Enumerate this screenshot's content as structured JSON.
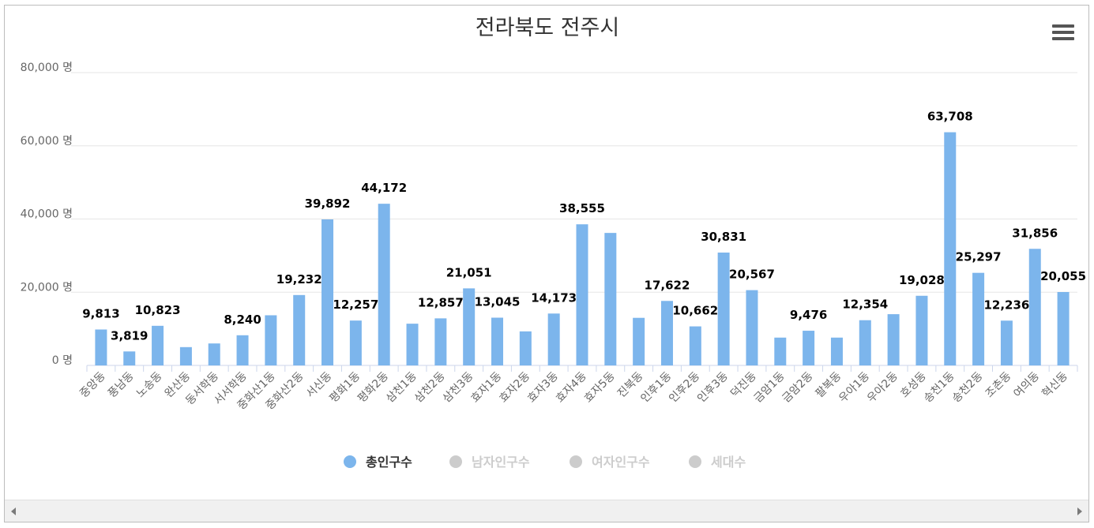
{
  "chart_data": {
    "type": "bar",
    "title": "전라북도 전주시",
    "y_unit": "명",
    "ylim": [
      0,
      80000
    ],
    "yticks": [
      "80,000 명",
      "60,000 명",
      "40,000 명",
      "20,000 명",
      "0 명"
    ],
    "yticks_values": [
      80000,
      60000,
      40000,
      20000,
      0
    ],
    "grid": true,
    "legend_position": "bottom",
    "categories": [
      "중앙동",
      "풍남동",
      "노송동",
      "완산동",
      "동서학동",
      "서서학동",
      "중화산1동",
      "중화산2동",
      "서신동",
      "평화1동",
      "평화2동",
      "삼천1동",
      "삼천2동",
      "삼천3동",
      "효자1동",
      "효자2동",
      "효자3동",
      "효자4동",
      "효자5동",
      "진북동",
      "인후1동",
      "인후2동",
      "인후3동",
      "덕진동",
      "금암1동",
      "금암2동",
      "팔복동",
      "우아1동",
      "우아2동",
      "호성동",
      "송천1동",
      "송천2동",
      "조촌동",
      "여의동",
      "혁신동"
    ],
    "series": [
      {
        "name": "총인구수",
        "color": "#7cb5ec",
        "visible": true,
        "values": [
          9813,
          3819,
          10823,
          5000,
          6000,
          8240,
          13700,
          19232,
          39892,
          12257,
          44172,
          11400,
          12857,
          21051,
          13045,
          9300,
          14173,
          38555,
          36200,
          13000,
          17622,
          10662,
          30831,
          20567,
          7600,
          9476,
          7600,
          12354,
          14000,
          19028,
          63708,
          25297,
          12236,
          31856,
          20055
        ],
        "labels": [
          "9,813",
          "3,819",
          "10,823",
          "",
          "",
          "8,240",
          "",
          "19,232",
          "39,892",
          "12,257",
          "44,172",
          "",
          "12,857",
          "21,051",
          "13,045",
          "",
          "14,173",
          "38,555",
          "",
          "",
          "17,622",
          "10,662",
          "30,831",
          "20,567",
          "",
          "9,476",
          "",
          "12,354",
          "",
          "19,028",
          "63,708",
          "25,297",
          "12,236",
          "31,856",
          "20,055"
        ]
      }
    ],
    "legend": [
      {
        "name": "총인구수",
        "visible": true,
        "color": "#7cb5ec"
      },
      {
        "name": "남자인구수",
        "visible": false,
        "color": "#cccccc"
      },
      {
        "name": "여자인구수",
        "visible": false,
        "color": "#cccccc"
      },
      {
        "name": "세대수",
        "visible": false,
        "color": "#cccccc"
      }
    ]
  },
  "ui": {
    "menu_icon": "hamburger-menu-icon",
    "scroll_left_icon": "triangle-left-icon",
    "scroll_right_icon": "triangle-right-icon"
  }
}
